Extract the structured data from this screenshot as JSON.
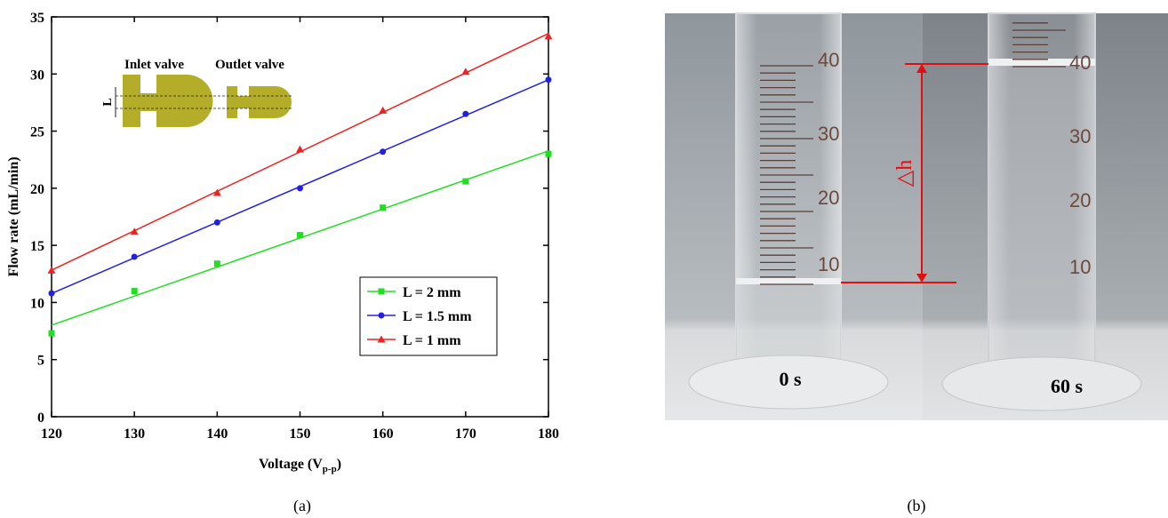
{
  "chart_data": {
    "type": "line",
    "x": [
      120,
      130,
      140,
      150,
      160,
      170,
      180
    ],
    "series": [
      {
        "name": "L = 2 mm",
        "color": "#22dd22",
        "marker": "square",
        "values": [
          7.3,
          11.0,
          13.4,
          15.9,
          18.3,
          20.6,
          23.0
        ]
      },
      {
        "name": "L = 1.5 mm",
        "color": "#2222dd",
        "marker": "circle",
        "values": [
          10.8,
          14.0,
          17.0,
          20.0,
          23.2,
          26.5,
          29.5
        ]
      },
      {
        "name": "L = 1 mm",
        "color": "#ee2222",
        "marker": "triangle",
        "values": [
          12.8,
          16.2,
          19.6,
          23.4,
          26.8,
          30.2,
          33.3
        ]
      }
    ],
    "xlim": [
      120,
      180
    ],
    "xticks": [
      120,
      130,
      140,
      150,
      160,
      170,
      180
    ],
    "ylim": [
      0,
      35
    ],
    "yticks": [
      0,
      5,
      10,
      15,
      20,
      25,
      30,
      35
    ],
    "x_label": {
      "text": "Voltage (V",
      "sub": "p-p",
      "end": ")"
    },
    "y_label": "Flow rate (mL/min)",
    "legend": "lower right",
    "inset": {
      "inlet": "Inlet valve",
      "outlet": "Outlet valve",
      "dimension": "L"
    }
  },
  "photo": {
    "scale_labels": [
      "40",
      "30",
      "20",
      "10"
    ],
    "times": [
      "0 s",
      "60 s"
    ],
    "delta": "△h"
  },
  "captions": [
    "(a)",
    "(b)"
  ]
}
